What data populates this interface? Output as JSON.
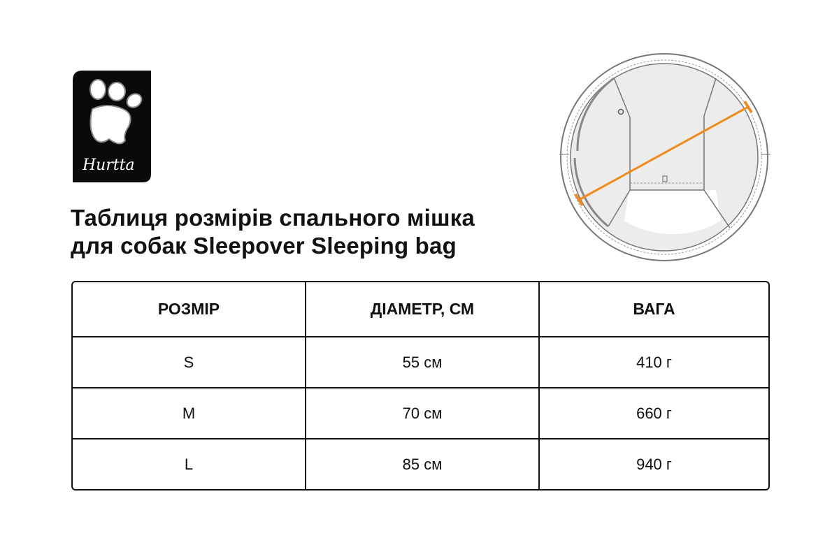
{
  "logo": {
    "text": "Hurtta",
    "background": "#0a0a0a"
  },
  "title": {
    "line1": "Таблиця розмірів спального мішка",
    "line2": "для собак Sleepover Sleeping bag"
  },
  "diagram": {
    "measure_color": "#f08a1c",
    "measures": "diameter"
  },
  "table": {
    "headers": [
      "РОЗМІР",
      "ДІАМЕТР, СМ",
      "ВАГА"
    ],
    "rows": [
      [
        "S",
        "55 см",
        "410 г"
      ],
      [
        "M",
        "70 см",
        "660 г"
      ],
      [
        "L",
        "85 см",
        "940 г"
      ]
    ]
  }
}
